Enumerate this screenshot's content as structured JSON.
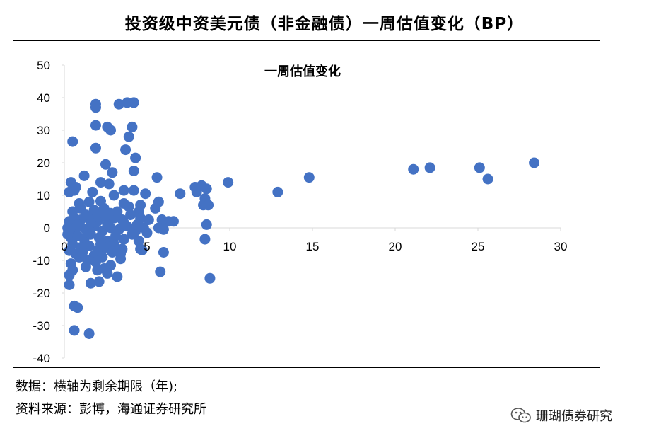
{
  "header": {
    "title": "投资级中资美元债（非金融债）一周估值变化（BP）"
  },
  "notes": {
    "data_note": "数据：横轴为剩余期限（年);",
    "source_note": "资料来源：彭博，海通证券研究所"
  },
  "watermark": {
    "text": "珊瑚债券研究",
    "icon": "wechat-icon"
  },
  "chart_data": {
    "type": "scatter",
    "title": "一周估值变化",
    "xlabel": "",
    "ylabel": "",
    "xlim": [
      0,
      30
    ],
    "ylim": [
      -40,
      50
    ],
    "x_ticks": [
      0,
      5,
      10,
      15,
      20,
      25,
      30
    ],
    "y_ticks": [
      -40,
      -30,
      -20,
      -10,
      0,
      10,
      20,
      30,
      40,
      50
    ],
    "grid": false,
    "color": "#4472C4",
    "points": [
      [
        1.9,
        38
      ],
      [
        3.3,
        38
      ],
      [
        3.8,
        38.5
      ],
      [
        4.2,
        38.5
      ],
      [
        1.9,
        37
      ],
      [
        1.9,
        31.5
      ],
      [
        2.6,
        31
      ],
      [
        2.8,
        30
      ],
      [
        4.1,
        31
      ],
      [
        3.9,
        28
      ],
      [
        0.5,
        26.5
      ],
      [
        1.9,
        24.5
      ],
      [
        3.7,
        24
      ],
      [
        4.3,
        21.5
      ],
      [
        2.5,
        19.5
      ],
      [
        2.9,
        17
      ],
      [
        4.2,
        17.5
      ],
      [
        5.6,
        15.5
      ],
      [
        1.2,
        16
      ],
      [
        0.4,
        14
      ],
      [
        0.7,
        12.5
      ],
      [
        2.2,
        14
      ],
      [
        2.7,
        13.5
      ],
      [
        3.6,
        11.5
      ],
      [
        4.2,
        11.5
      ],
      [
        0.6,
        11.5
      ],
      [
        1.7,
        11
      ],
      [
        0.3,
        11
      ],
      [
        3.0,
        10
      ],
      [
        4.9,
        10.5
      ],
      [
        5.7,
        8
      ],
      [
        5.5,
        6
      ],
      [
        3.6,
        7.5
      ],
      [
        2.2,
        8.2
      ],
      [
        1.5,
        8
      ],
      [
        0.9,
        7.5
      ],
      [
        4.5,
        5
      ],
      [
        2.8,
        4.5
      ],
      [
        6.3,
        2
      ],
      [
        5.9,
        2.5
      ],
      [
        6.6,
        2
      ],
      [
        8.6,
        1
      ],
      [
        5.7,
        0
      ],
      [
        6.0,
        -0.5
      ],
      [
        7.0,
        10.5
      ],
      [
        7.9,
        12.5
      ],
      [
        8.3,
        13
      ],
      [
        8.6,
        12
      ],
      [
        8.0,
        11
      ],
      [
        8.5,
        9
      ],
      [
        8.4,
        7
      ],
      [
        8.7,
        7
      ],
      [
        9.9,
        14
      ],
      [
        12.9,
        11
      ],
      [
        14.8,
        15.5
      ],
      [
        21.1,
        18
      ],
      [
        22.1,
        18.5
      ],
      [
        25.1,
        18.5
      ],
      [
        25.6,
        15
      ],
      [
        28.4,
        20
      ],
      [
        8.5,
        -3.5
      ],
      [
        8.8,
        -15.5
      ],
      [
        6.0,
        -7.5
      ],
      [
        5.8,
        -13.5
      ],
      [
        4.6,
        -6.5
      ],
      [
        4.7,
        -6.8
      ],
      [
        3.4,
        -9.5
      ],
      [
        3.2,
        -15
      ],
      [
        2.8,
        -11.5
      ],
      [
        2.4,
        -12.5
      ],
      [
        2.1,
        -16.5
      ],
      [
        1.6,
        -17
      ],
      [
        2.0,
        -13
      ],
      [
        1.4,
        -10
      ],
      [
        0.9,
        -9
      ],
      [
        0.3,
        -17.5
      ],
      [
        0.3,
        -14.5
      ],
      [
        0.4,
        -11
      ],
      [
        0.6,
        -24
      ],
      [
        0.8,
        -24.5
      ],
      [
        0.6,
        -31.5
      ],
      [
        1.5,
        -32.5
      ],
      [
        0.3,
        2
      ],
      [
        0.6,
        3
      ],
      [
        1.0,
        2.5
      ],
      [
        1.5,
        3
      ],
      [
        2.0,
        2
      ],
      [
        2.5,
        3.5
      ],
      [
        3.0,
        3
      ],
      [
        3.5,
        2.5
      ],
      [
        4.0,
        4
      ],
      [
        4.6,
        3
      ],
      [
        5.1,
        2.5
      ],
      [
        0.2,
        0
      ],
      [
        0.5,
        -1
      ],
      [
        0.9,
        0.5
      ],
      [
        1.3,
        -0.5
      ],
      [
        1.8,
        0.5
      ],
      [
        2.3,
        -1
      ],
      [
        2.8,
        0
      ],
      [
        3.3,
        -0.5
      ],
      [
        3.8,
        0.5
      ],
      [
        4.3,
        -1
      ],
      [
        4.8,
        0
      ],
      [
        0.4,
        -3
      ],
      [
        0.8,
        -2.5
      ],
      [
        1.2,
        -3.5
      ],
      [
        1.6,
        -2
      ],
      [
        2.1,
        -3
      ],
      [
        2.6,
        -4
      ],
      [
        3.1,
        -2.5
      ],
      [
        3.6,
        -3.5
      ],
      [
        4.1,
        -2
      ],
      [
        4.5,
        -4
      ],
      [
        0.5,
        -5
      ],
      [
        1.0,
        -6
      ],
      [
        1.5,
        -5.5
      ],
      [
        2.0,
        -7
      ],
      [
        2.5,
        -6
      ],
      [
        3.0,
        -5
      ],
      [
        3.5,
        -6.5
      ],
      [
        0.3,
        -7
      ],
      [
        0.7,
        -8
      ],
      [
        1.1,
        -7.5
      ],
      [
        1.8,
        -8.5
      ],
      [
        2.3,
        -9
      ],
      [
        2.9,
        -7.5
      ],
      [
        3.4,
        -8
      ],
      [
        0.5,
        5
      ],
      [
        1.0,
        6
      ],
      [
        1.8,
        5.5
      ],
      [
        2.4,
        6
      ],
      [
        3.2,
        5
      ],
      [
        3.9,
        6.5
      ],
      [
        4.6,
        7
      ],
      [
        1.3,
        4
      ],
      [
        2.0,
        4.5
      ],
      [
        0.8,
        1
      ],
      [
        1.6,
        1.5
      ],
      [
        2.6,
        1
      ],
      [
        3.6,
        1.5
      ],
      [
        4.4,
        1
      ],
      [
        5.0,
        -1.5
      ],
      [
        0.2,
        -2
      ],
      [
        2.2,
        -5
      ],
      [
        3.2,
        -7
      ],
      [
        1.3,
        -12
      ],
      [
        0.5,
        -13
      ],
      [
        2.6,
        -14
      ],
      [
        1.9,
        -10.5
      ]
    ]
  }
}
